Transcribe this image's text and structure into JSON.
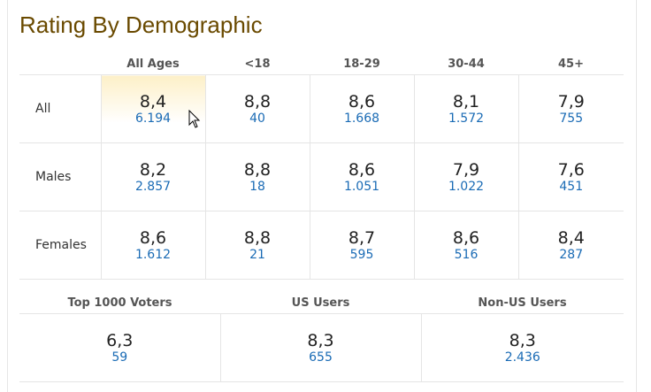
{
  "title": "Rating By Demographic",
  "age_headers": [
    "All Ages",
    "<18",
    "18-29",
    "30-44",
    "45+"
  ],
  "rows": [
    {
      "label": "All",
      "cells": [
        {
          "rating": "8,4",
          "votes": "6.194"
        },
        {
          "rating": "8,8",
          "votes": "40"
        },
        {
          "rating": "8,6",
          "votes": "1.668"
        },
        {
          "rating": "8,1",
          "votes": "1.572"
        },
        {
          "rating": "7,9",
          "votes": "755"
        }
      ]
    },
    {
      "label": "Males",
      "cells": [
        {
          "rating": "8,2",
          "votes": "2.857"
        },
        {
          "rating": "8,8",
          "votes": "18"
        },
        {
          "rating": "8,6",
          "votes": "1.051"
        },
        {
          "rating": "7,9",
          "votes": "1.022"
        },
        {
          "rating": "7,6",
          "votes": "451"
        }
      ]
    },
    {
      "label": "Females",
      "cells": [
        {
          "rating": "8,6",
          "votes": "1.612"
        },
        {
          "rating": "8,8",
          "votes": "21"
        },
        {
          "rating": "8,7",
          "votes": "595"
        },
        {
          "rating": "8,6",
          "votes": "516"
        },
        {
          "rating": "8,4",
          "votes": "287"
        }
      ]
    }
  ],
  "groups": [
    {
      "label": "Top 1000 Voters",
      "rating": "6,3",
      "votes": "59"
    },
    {
      "label": "US Users",
      "rating": "8,3",
      "votes": "655"
    },
    {
      "label": "Non-US Users",
      "rating": "8,3",
      "votes": "2.436"
    }
  ]
}
